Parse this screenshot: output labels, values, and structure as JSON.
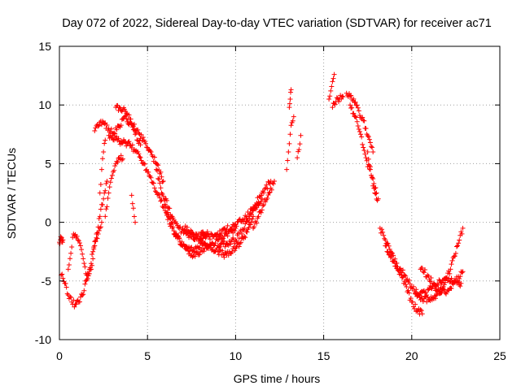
{
  "chart_data": {
    "type": "scatter",
    "title": "Day 072 of 2022, Sidereal Day-to-day VTEC variation (SDTVAR) for receiver ac71",
    "xlabel": "GPS time / hours",
    "ylabel": "SDTVAR / TECUs",
    "xlim": [
      0,
      25
    ],
    "ylim": [
      -10,
      15
    ],
    "xticks": [
      0,
      5,
      10,
      15,
      20,
      25
    ],
    "yticks": [
      -10,
      -5,
      0,
      5,
      10,
      15
    ],
    "grid": true,
    "marker": "+",
    "color": "#ff0000",
    "tracks": [
      {
        "x": [
          0.0,
          0.05,
          0.1,
          0.15,
          0.2
        ],
        "y": [
          -1.7,
          -1.5,
          -1.4,
          -1.6,
          -1.5
        ]
      },
      {
        "x": [
          0.1,
          0.3,
          0.5,
          0.7,
          0.9,
          1.1,
          1.3,
          1.5
        ],
        "y": [
          -4.5,
          -5.2,
          -6.2,
          -6.8,
          -7.0,
          -6.8,
          -6.2,
          -5.0
        ]
      },
      {
        "x": [
          0.5,
          0.8,
          1.0,
          1.2,
          1.4,
          1.6,
          1.8,
          2.0,
          2.2,
          2.4
        ],
        "y": [
          -4.0,
          -1.0,
          -1.2,
          -2.0,
          -3.5,
          -4.8,
          -4.0,
          -2.0,
          -1.0,
          0.0
        ]
      },
      {
        "x": [
          1.5,
          1.7,
          1.9,
          2.1,
          2.3,
          2.5,
          2.7
        ],
        "y": [
          -5.0,
          -4.0,
          -2.5,
          -1.0,
          0.5,
          2.0,
          3.5
        ]
      },
      {
        "x": [
          2.0,
          2.2,
          2.5,
          2.8,
          3.1,
          3.4,
          3.7,
          4.0,
          4.3,
          4.6
        ],
        "y": [
          7.8,
          8.2,
          8.5,
          8.0,
          7.6,
          8.2,
          9.0,
          8.5,
          7.5,
          6.6
        ]
      },
      {
        "x": [
          3.2,
          3.4,
          3.6,
          3.8,
          4.0,
          4.2,
          4.5,
          4.8,
          5.1,
          5.5,
          5.9
        ],
        "y": [
          9.8,
          9.8,
          9.6,
          9.3,
          8.8,
          8.2,
          7.6,
          7.0,
          6.2,
          5.0,
          3.5
        ]
      },
      {
        "x": [
          2.8,
          3.0,
          3.3,
          3.6,
          4.0,
          4.4,
          4.8,
          5.2,
          5.6,
          6.0,
          6.4
        ],
        "y": [
          7.4,
          7.2,
          7.0,
          6.8,
          6.6,
          6.0,
          5.0,
          3.8,
          2.4,
          1.0,
          -0.5
        ]
      },
      {
        "x": [
          2.6,
          2.8,
          3.0,
          3.2,
          3.4,
          3.6
        ],
        "y": [
          0.5,
          2.5,
          4.0,
          5.0,
          5.5,
          5.4
        ]
      },
      {
        "x": [
          2.3,
          2.4,
          2.5,
          2.6
        ],
        "y": [
          2.5,
          4.5,
          6.0,
          7.0
        ]
      },
      {
        "x": [
          4.1,
          4.2,
          4.3
        ],
        "y": [
          2.3,
          1.2,
          0.0
        ]
      },
      {
        "x": [
          5.5,
          5.8,
          6.2,
          6.6,
          7.0,
          7.4,
          7.8,
          8.2
        ],
        "y": [
          4.5,
          2.5,
          0.5,
          -1.0,
          -2.0,
          -2.4,
          -2.2,
          -1.8
        ]
      },
      {
        "x": [
          6.0,
          6.4,
          6.8,
          7.2,
          7.6,
          8.0,
          8.4
        ],
        "y": [
          2.0,
          0.5,
          -0.5,
          -1.0,
          -1.4,
          -1.2,
          -0.8
        ]
      },
      {
        "x": [
          6.5,
          7.0,
          7.5,
          8.0,
          8.5,
          9.0,
          9.5,
          10.0
        ],
        "y": [
          -1.0,
          -2.0,
          -2.8,
          -2.5,
          -2.0,
          -1.5,
          -1.0,
          -0.5
        ]
      },
      {
        "x": [
          7.0,
          7.5,
          8.0,
          8.5,
          9.0,
          9.5,
          10.0,
          10.5,
          11.0
        ],
        "y": [
          -0.5,
          -0.8,
          -1.5,
          -2.0,
          -2.5,
          -2.8,
          -2.2,
          -1.2,
          0.5
        ]
      },
      {
        "x": [
          8.0,
          8.5,
          9.0,
          9.5,
          10.0,
          10.5,
          11.0,
          11.5,
          12.0
        ],
        "y": [
          -1.0,
          -1.2,
          -1.0,
          -0.6,
          -0.2,
          0.3,
          1.2,
          2.5,
          3.5
        ]
      },
      {
        "x": [
          9.0,
          9.5,
          10.0,
          10.5,
          11.0,
          11.5
        ],
        "y": [
          -2.0,
          -1.8,
          -1.5,
          -0.5,
          1.0,
          2.0
        ]
      },
      {
        "x": [
          11.0,
          11.3,
          11.6,
          11.9,
          12.2
        ],
        "y": [
          -0.5,
          0.5,
          1.5,
          2.5,
          3.5
        ]
      },
      {
        "x": [
          12.9,
          13.0,
          13.1,
          13.2,
          13.3
        ],
        "y": [
          4.5,
          6.0,
          7.5,
          8.5,
          9.0
        ]
      },
      {
        "x": [
          13.05,
          13.1,
          13.15
        ],
        "y": [
          9.8,
          10.5,
          11.3
        ]
      },
      {
        "x": [
          13.5,
          13.6,
          13.7
        ],
        "y": [
          5.5,
          6.2,
          7.4
        ]
      },
      {
        "x": [
          15.3,
          15.4,
          15.5,
          15.6
        ],
        "y": [
          10.5,
          11.2,
          12.0,
          12.6
        ]
      },
      {
        "x": [
          15.5,
          15.7,
          15.9,
          16.1
        ],
        "y": [
          9.8,
          10.3,
          10.5,
          10.7
        ]
      },
      {
        "x": [
          16.5,
          16.8,
          17.1,
          17.4,
          17.7,
          18.0
        ],
        "y": [
          10.0,
          9.0,
          7.5,
          5.5,
          4.0,
          2.5
        ]
      },
      {
        "x": [
          16.3,
          16.6,
          17.0,
          17.4,
          17.8
        ],
        "y": [
          11.0,
          10.5,
          9.5,
          8.0,
          6.0
        ]
      },
      {
        "x": [
          17.5,
          17.7,
          17.9,
          18.1
        ],
        "y": [
          6.0,
          4.0,
          2.5,
          2.0
        ]
      },
      {
        "x": [
          18.2,
          18.5,
          18.8,
          19.1,
          19.4,
          19.7,
          20.0,
          20.3,
          20.6
        ],
        "y": [
          -0.5,
          -1.5,
          -2.5,
          -3.5,
          -4.5,
          -5.5,
          -6.8,
          -7.5,
          -7.8
        ]
      },
      {
        "x": [
          18.5,
          18.8,
          19.2,
          19.6,
          20.0,
          20.4,
          20.8,
          21.2,
          21.6,
          22.0,
          22.4,
          22.8
        ],
        "y": [
          -2.0,
          -3.0,
          -3.8,
          -4.5,
          -5.5,
          -6.2,
          -6.0,
          -5.5,
          -5.0,
          -4.8,
          -5.0,
          -5.2
        ]
      },
      {
        "x": [
          20.2,
          20.6,
          21.0,
          21.4,
          21.8,
          22.2,
          22.6,
          22.9
        ],
        "y": [
          -6.0,
          -6.5,
          -6.6,
          -6.2,
          -5.5,
          -4.0,
          -2.0,
          -0.5
        ]
      },
      {
        "x": [
          20.5,
          20.9,
          21.3,
          21.7,
          22.1,
          22.5,
          22.9
        ],
        "y": [
          -4.0,
          -4.5,
          -5.5,
          -6.0,
          -5.8,
          -5.0,
          -4.2
        ]
      }
    ]
  }
}
